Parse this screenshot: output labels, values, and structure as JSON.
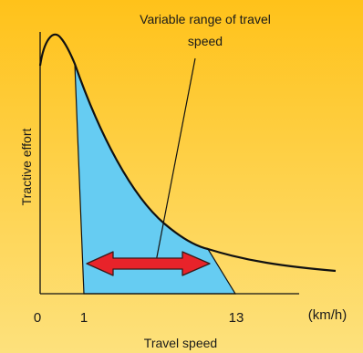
{
  "chart_data": {
    "type": "area",
    "xlabel": "Travel speed",
    "ylabel": "Tractive effort",
    "x_unit_label": "(km/h)",
    "x_ticks": [
      "0",
      "1",
      "13"
    ],
    "annotation": {
      "line1": "Variable range of travel",
      "line2": "speed"
    },
    "shaded_range": {
      "from": 1,
      "to": 13
    },
    "colors": {
      "background_top": "#ffc21a",
      "background_bottom": "#fde17c",
      "shaded_fill": "#66ccf2",
      "arrow_fill": "#e8232a",
      "arrow_stroke": "#3a1a1a",
      "curve": "#111111"
    }
  }
}
